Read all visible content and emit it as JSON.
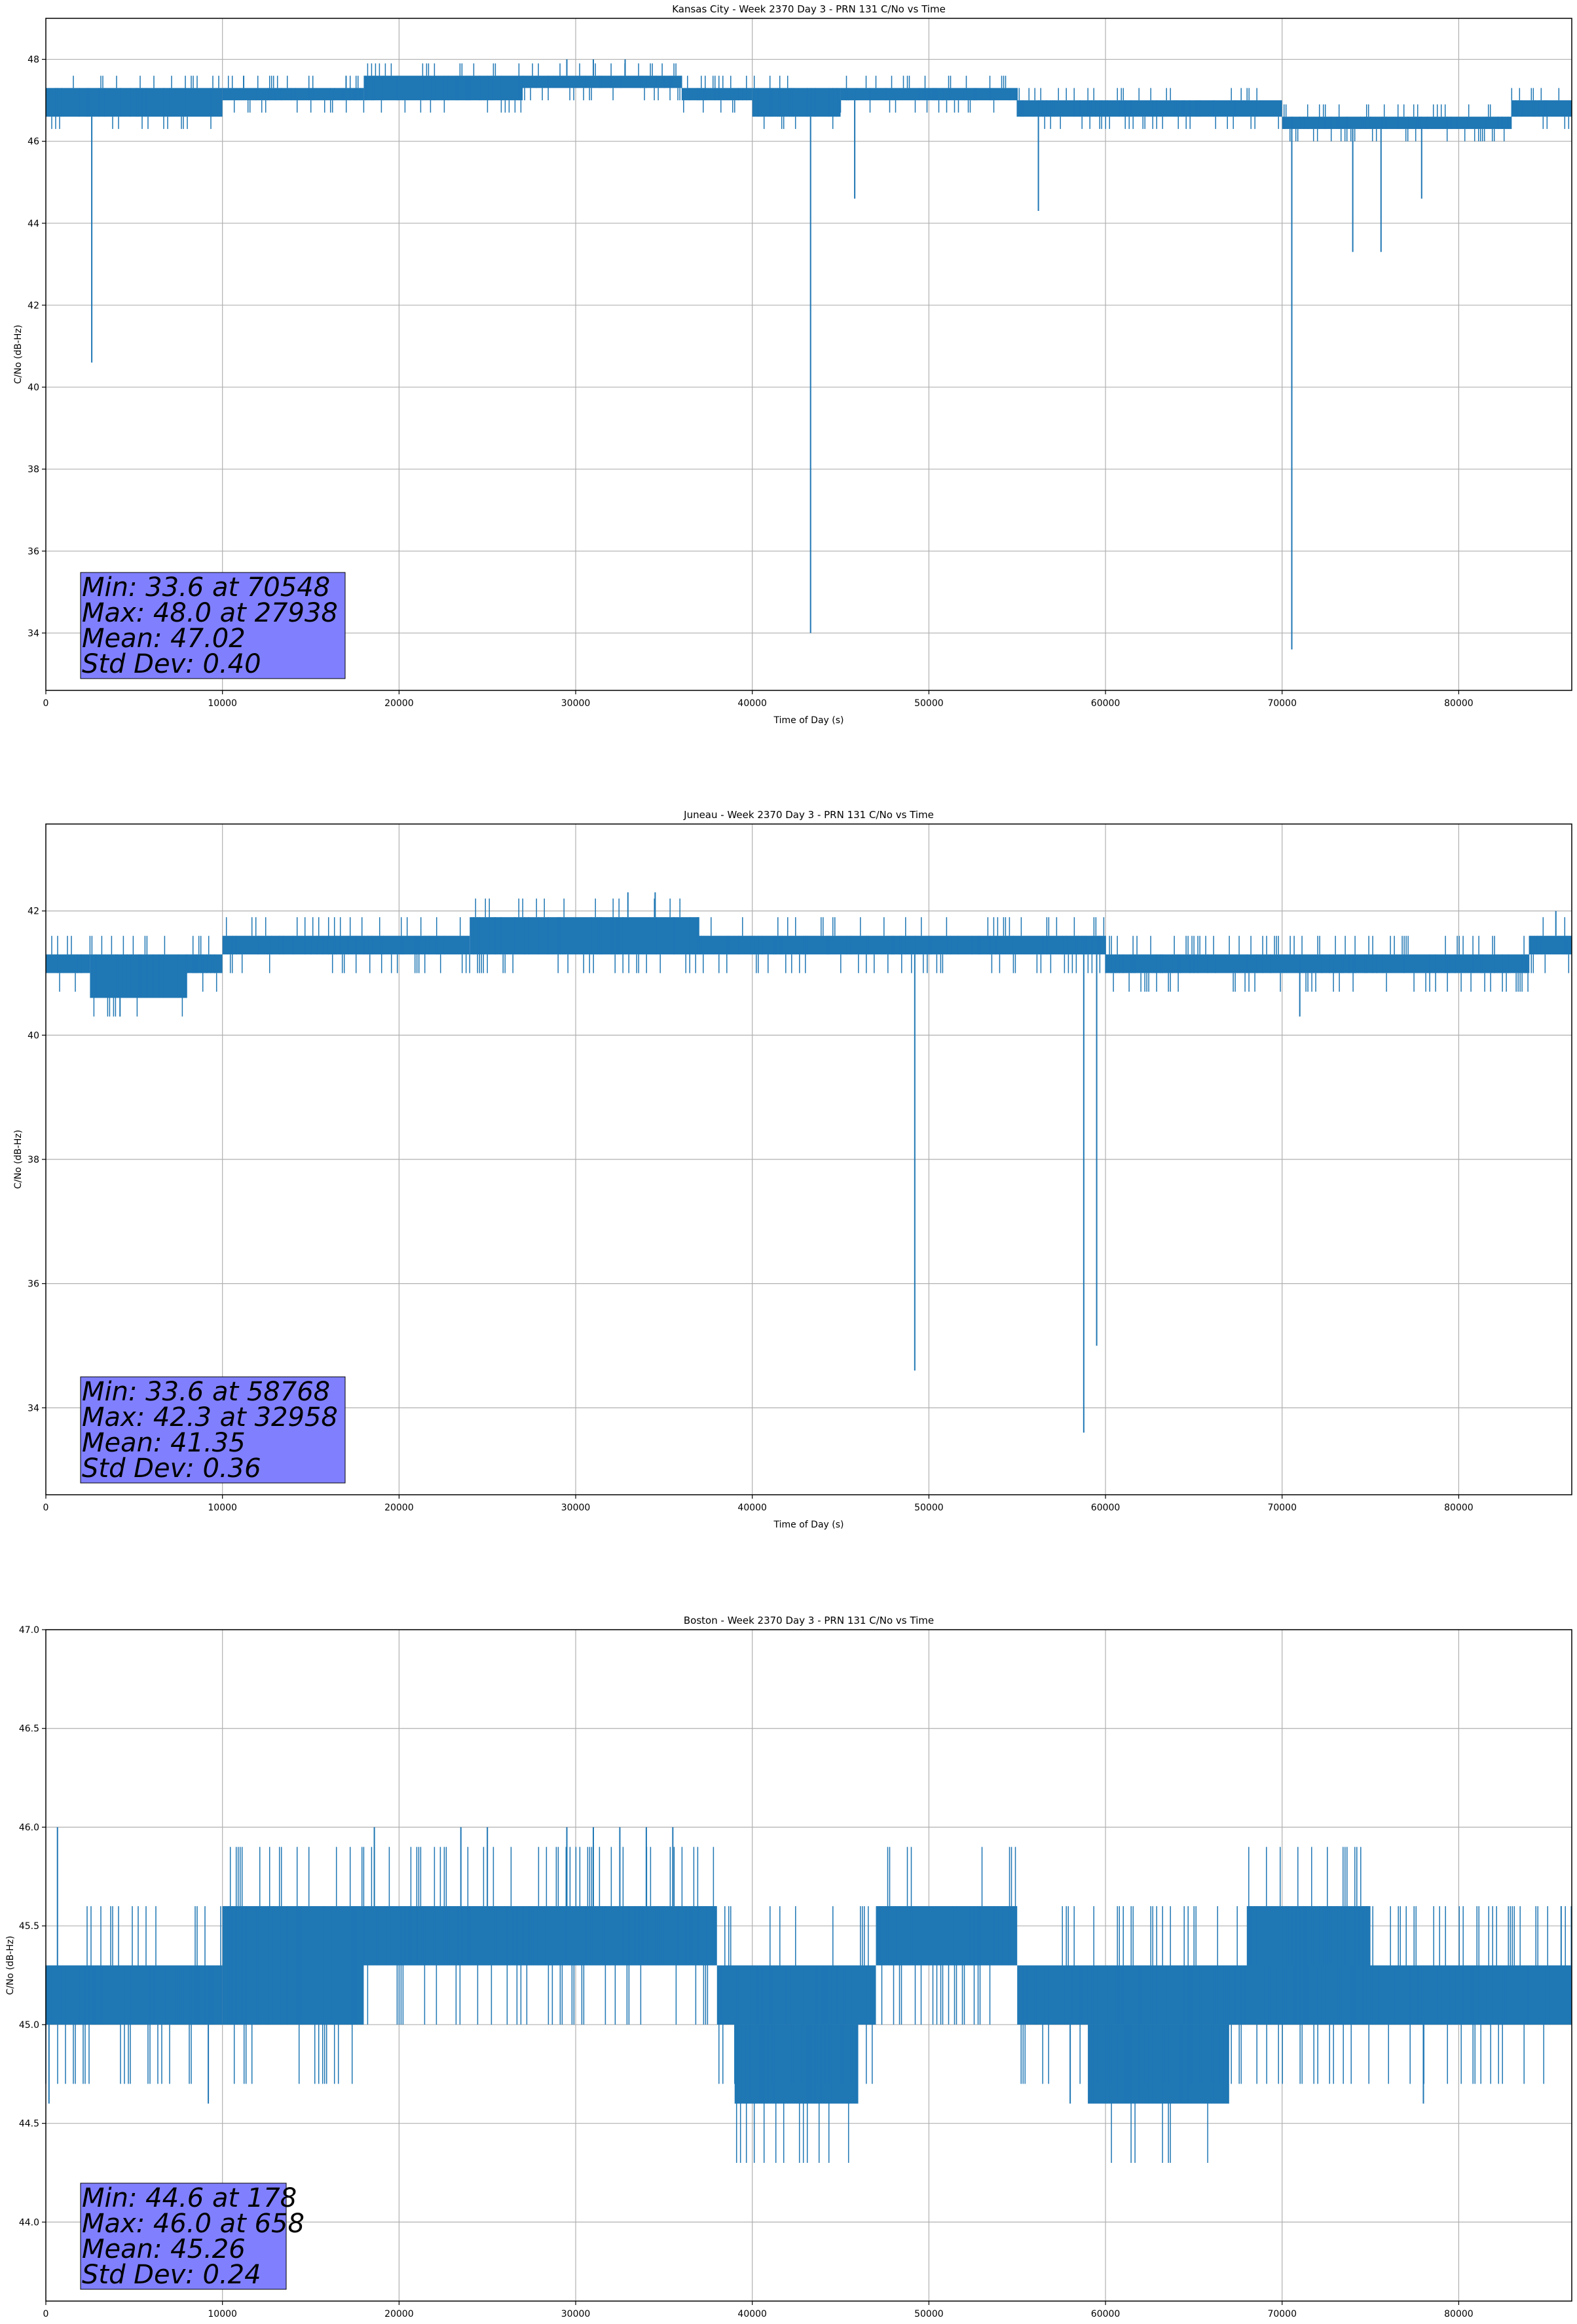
{
  "chart_data": [
    {
      "type": "line",
      "title": "Kansas City - Week 2370 Day 3 - PRN 131 C/No vs Time",
      "xlabel": "Time of Day (s)",
      "ylabel": "C/No (dB-Hz)",
      "xlim": [
        0,
        86400
      ],
      "ylim": [
        32.6,
        49.0
      ],
      "xticks": [
        0,
        10000,
        20000,
        30000,
        40000,
        50000,
        60000,
        70000,
        80000
      ],
      "yticks": [
        34,
        36,
        38,
        40,
        42,
        44,
        46,
        48
      ],
      "ytick_decimals": 0,
      "grid": true,
      "color": "#1f77b4",
      "segments": [
        {
          "x0": 0,
          "x1": 10000,
          "lo": 46.6,
          "hi": 47.3
        },
        {
          "x0": 10000,
          "x1": 18000,
          "lo": 47.0,
          "hi": 47.3
        },
        {
          "x0": 18000,
          "x1": 27000,
          "lo": 47.0,
          "hi": 47.6
        },
        {
          "x0": 27000,
          "x1": 36000,
          "lo": 47.3,
          "hi": 47.6
        },
        {
          "x0": 36000,
          "x1": 40000,
          "lo": 47.0,
          "hi": 47.3
        },
        {
          "x0": 40000,
          "x1": 45000,
          "lo": 46.6,
          "hi": 47.3
        },
        {
          "x0": 45000,
          "x1": 55000,
          "lo": 47.0,
          "hi": 47.3
        },
        {
          "x0": 55000,
          "x1": 70000,
          "lo": 46.6,
          "hi": 47.0
        },
        {
          "x0": 70000,
          "x1": 83000,
          "lo": 46.3,
          "hi": 46.6
        },
        {
          "x0": 83000,
          "x1": 86400,
          "lo": 46.6,
          "hi": 47.0
        }
      ],
      "spikes": [
        {
          "x": 2600,
          "y": 40.6
        },
        {
          "x": 43300,
          "y": 34.0
        },
        {
          "x": 45800,
          "y": 44.6
        },
        {
          "x": 56200,
          "y": 44.3
        },
        {
          "x": 70548,
          "y": 33.6
        },
        {
          "x": 74000,
          "y": 43.3
        },
        {
          "x": 75600,
          "y": 43.3
        },
        {
          "x": 77900,
          "y": 44.6
        },
        {
          "x": 29500,
          "y": 48.0
        },
        {
          "x": 31000,
          "y": 48.0
        },
        {
          "x": 32800,
          "y": 48.0
        },
        {
          "x": 11200,
          "y": 47.6
        },
        {
          "x": 17000,
          "y": 47.6
        }
      ],
      "stats": {
        "min": "Min: 33.6 at 70548",
        "max": "Max: 48.0 at 27938",
        "mean": "Mean: 47.02",
        "std": "Std Dev: 0.40"
      }
    },
    {
      "type": "line",
      "title": "Juneau - Week 2370 Day 3 - PRN 131 C/No vs Time",
      "xlabel": "Time of Day (s)",
      "ylabel": "C/No (dB-Hz)",
      "xlim": [
        0,
        86400
      ],
      "ylim": [
        32.6,
        43.4
      ],
      "xticks": [
        0,
        10000,
        20000,
        30000,
        40000,
        50000,
        60000,
        70000,
        80000
      ],
      "yticks": [
        34,
        36,
        38,
        40,
        42
      ],
      "ytick_decimals": 0,
      "grid": true,
      "color": "#1f77b4",
      "segments": [
        {
          "x0": 0,
          "x1": 2500,
          "lo": 41.0,
          "hi": 41.3
        },
        {
          "x0": 2500,
          "x1": 8000,
          "lo": 40.6,
          "hi": 41.3
        },
        {
          "x0": 8000,
          "x1": 10000,
          "lo": 41.0,
          "hi": 41.3
        },
        {
          "x0": 10000,
          "x1": 24000,
          "lo": 41.3,
          "hi": 41.6
        },
        {
          "x0": 24000,
          "x1": 37000,
          "lo": 41.3,
          "hi": 41.9
        },
        {
          "x0": 37000,
          "x1": 50000,
          "lo": 41.3,
          "hi": 41.6
        },
        {
          "x0": 50000,
          "x1": 60000,
          "lo": 41.3,
          "hi": 41.6
        },
        {
          "x0": 60000,
          "x1": 84000,
          "lo": 41.0,
          "hi": 41.3
        },
        {
          "x0": 84000,
          "x1": 86400,
          "lo": 41.3,
          "hi": 41.6
        }
      ],
      "spikes": [
        {
          "x": 49200,
          "y": 34.6
        },
        {
          "x": 58768,
          "y": 33.6
        },
        {
          "x": 59500,
          "y": 35.0
        },
        {
          "x": 4200,
          "y": 40.3
        },
        {
          "x": 34500,
          "y": 42.3
        },
        {
          "x": 32958,
          "y": 42.3
        },
        {
          "x": 71000,
          "y": 40.3
        },
        {
          "x": 85500,
          "y": 42.0
        }
      ],
      "stats": {
        "min": "Min: 33.6 at 58768",
        "max": "Max: 42.3 at 32958",
        "mean": "Mean: 41.35",
        "std": "Std Dev: 0.36"
      }
    },
    {
      "type": "line",
      "title": "Boston - Week 2370 Day 3 - PRN 131 C/No vs Time",
      "xlabel": "Time of Day (s)",
      "ylabel": "C/No (dB-Hz)",
      "xlim": [
        0,
        86400
      ],
      "ylim": [
        43.6,
        47.0
      ],
      "xticks": [
        0,
        10000,
        20000,
        30000,
        40000,
        50000,
        60000,
        70000,
        80000
      ],
      "yticks": [
        44.0,
        44.5,
        45.0,
        45.5,
        46.0,
        46.5,
        47.0
      ],
      "ytick_decimals": 1,
      "grid": true,
      "color": "#1f77b4",
      "segments": [
        {
          "x0": 0,
          "x1": 10000,
          "lo": 45.0,
          "hi": 45.3
        },
        {
          "x0": 10000,
          "x1": 18000,
          "lo": 45.0,
          "hi": 45.6
        },
        {
          "x0": 18000,
          "x1": 38000,
          "lo": 45.3,
          "hi": 45.6
        },
        {
          "x0": 38000,
          "x1": 47000,
          "lo": 45.0,
          "hi": 45.3
        },
        {
          "x0": 39000,
          "x1": 46000,
          "lo": 44.6,
          "hi": 45.0
        },
        {
          "x0": 47000,
          "x1": 55000,
          "lo": 45.3,
          "hi": 45.6
        },
        {
          "x0": 55000,
          "x1": 86400,
          "lo": 45.0,
          "hi": 45.3
        },
        {
          "x0": 59000,
          "x1": 67000,
          "lo": 44.6,
          "hi": 45.0
        },
        {
          "x0": 68000,
          "x1": 75000,
          "lo": 45.3,
          "hi": 45.6
        }
      ],
      "spikes": [
        {
          "x": 178,
          "y": 44.6
        },
        {
          "x": 658,
          "y": 46.0
        },
        {
          "x": 9200,
          "y": 44.6
        },
        {
          "x": 18600,
          "y": 46.0
        },
        {
          "x": 23500,
          "y": 46.0
        },
        {
          "x": 25000,
          "y": 46.0
        },
        {
          "x": 29500,
          "y": 46.0
        },
        {
          "x": 31000,
          "y": 46.0
        },
        {
          "x": 32500,
          "y": 46.0
        },
        {
          "x": 34000,
          "y": 46.0
        },
        {
          "x": 35500,
          "y": 46.0
        },
        {
          "x": 58000,
          "y": 44.6
        },
        {
          "x": 78000,
          "y": 44.6
        },
        {
          "x": 85800,
          "y": 45.6
        }
      ],
      "stats": {
        "min": "Min: 44.6 at 178",
        "max": "Max: 46.0 at 658",
        "mean": "Mean: 45.26",
        "std": "Std Dev: 0.24"
      }
    }
  ]
}
